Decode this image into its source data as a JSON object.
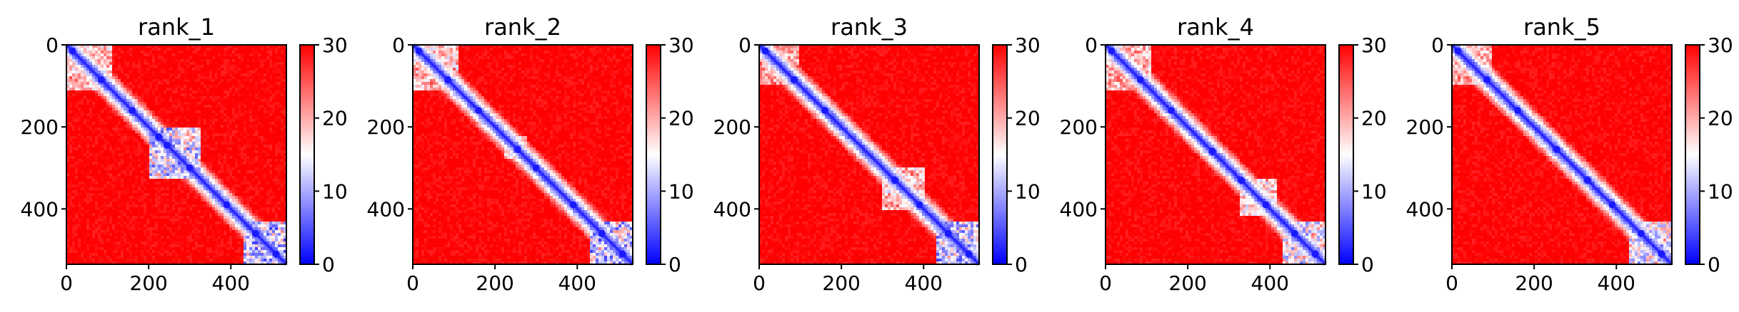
{
  "chart_data": {
    "type": "heatmap",
    "layout": "1x5",
    "colormap": {
      "name": "bwr",
      "min_color": "#0000ff",
      "mid_color": "#ffffff",
      "max_color": "#ff0000"
    },
    "panels": [
      {
        "title": "rank_1",
        "size": 535,
        "xlim": [
          0,
          535
        ],
        "ylim": [
          535,
          0
        ],
        "x_ticks": [
          "0",
          "200",
          "400"
        ],
        "x_tick_values": [
          0,
          200,
          400
        ],
        "y_ticks": [
          "0",
          "200",
          "400"
        ],
        "y_tick_values": [
          0,
          200,
          400
        ],
        "colorbar": {
          "min": 0,
          "max": 30,
          "ticks": [
            "0",
            "10",
            "20",
            "30"
          ],
          "tick_values": [
            0,
            10,
            20,
            30
          ]
        },
        "low_blocks": [
          {
            "range": [
              0,
              110
            ],
            "strength": 0.55
          },
          {
            "range": [
              200,
              330
            ],
            "strength": 0.8
          },
          {
            "range": [
              430,
              535
            ],
            "strength": 0.85
          }
        ],
        "diagonal_nodes": [
          15,
          85,
          160,
          225,
          245,
          300,
          390,
          460,
          510
        ]
      },
      {
        "title": "rank_2",
        "size": 535,
        "xlim": [
          0,
          535
        ],
        "ylim": [
          535,
          0
        ],
        "x_ticks": [
          "0",
          "200",
          "400"
        ],
        "x_tick_values": [
          0,
          200,
          400
        ],
        "y_ticks": [
          "0",
          "200",
          "400"
        ],
        "y_tick_values": [
          0,
          200,
          400
        ],
        "colorbar": {
          "min": 0,
          "max": 30,
          "ticks": [
            "0",
            "10",
            "20",
            "30"
          ],
          "tick_values": [
            0,
            10,
            20,
            30
          ]
        },
        "low_blocks": [
          {
            "range": [
              0,
              110
            ],
            "strength": 0.55
          },
          {
            "range": [
              225,
              280
            ],
            "strength": 0.6
          },
          {
            "range": [
              430,
              535
            ],
            "strength": 0.85
          }
        ],
        "diagonal_nodes": [
          15,
          85,
          160,
          255,
          300,
          390,
          460,
          510
        ]
      },
      {
        "title": "rank_3",
        "size": 535,
        "xlim": [
          0,
          535
        ],
        "ylim": [
          535,
          0
        ],
        "x_ticks": [
          "0",
          "200",
          "400"
        ],
        "x_tick_values": [
          0,
          200,
          400
        ],
        "y_ticks": [
          "0",
          "200",
          "400"
        ],
        "y_tick_values": [
          0,
          200,
          400
        ],
        "colorbar": {
          "min": 0,
          "max": 30,
          "ticks": [
            "0",
            "10",
            "20",
            "30"
          ],
          "tick_values": [
            0,
            10,
            20,
            30
          ]
        },
        "low_blocks": [
          {
            "range": [
              0,
              100
            ],
            "strength": 0.45
          },
          {
            "range": [
              300,
              400
            ],
            "strength": 0.55
          },
          {
            "range": [
              430,
              535
            ],
            "strength": 0.85
          }
        ],
        "diagonal_nodes": [
          15,
          85,
          160,
          330,
          390,
          460,
          510
        ]
      },
      {
        "title": "rank_4",
        "size": 535,
        "xlim": [
          0,
          535
        ],
        "ylim": [
          535,
          0
        ],
        "x_ticks": [
          "0",
          "200",
          "400"
        ],
        "x_tick_values": [
          0,
          200,
          400
        ],
        "y_ticks": [
          "0",
          "200",
          "400"
        ],
        "y_tick_values": [
          0,
          200,
          400
        ],
        "colorbar": {
          "min": 0,
          "max": 30,
          "ticks": [
            "0",
            "10",
            "20",
            "30"
          ],
          "tick_values": [
            0,
            10,
            20,
            30
          ]
        },
        "low_blocks": [
          {
            "range": [
              0,
              110
            ],
            "strength": 0.5
          },
          {
            "range": [
              330,
              420
            ],
            "strength": 0.6
          },
          {
            "range": [
              430,
              535
            ],
            "strength": 0.75
          }
        ],
        "diagonal_nodes": [
          15,
          85,
          160,
          260,
          330,
          390,
          460,
          510
        ]
      },
      {
        "title": "rank_5",
        "size": 535,
        "xlim": [
          0,
          535
        ],
        "ylim": [
          535,
          0
        ],
        "x_ticks": [
          "0",
          "200",
          "400"
        ],
        "x_tick_values": [
          0,
          200,
          400
        ],
        "y_ticks": [
          "0",
          "200",
          "400"
        ],
        "y_tick_values": [
          0,
          200,
          400
        ],
        "colorbar": {
          "min": 0,
          "max": 30,
          "ticks": [
            "0",
            "10",
            "20",
            "30"
          ],
          "tick_values": [
            0,
            10,
            20,
            30
          ]
        },
        "low_blocks": [
          {
            "range": [
              0,
              100
            ],
            "strength": 0.5
          },
          {
            "range": [
              430,
              535
            ],
            "strength": 0.75
          }
        ],
        "diagonal_nodes": [
          15,
          85,
          160,
          255,
          330,
          390,
          460,
          510
        ]
      }
    ]
  }
}
